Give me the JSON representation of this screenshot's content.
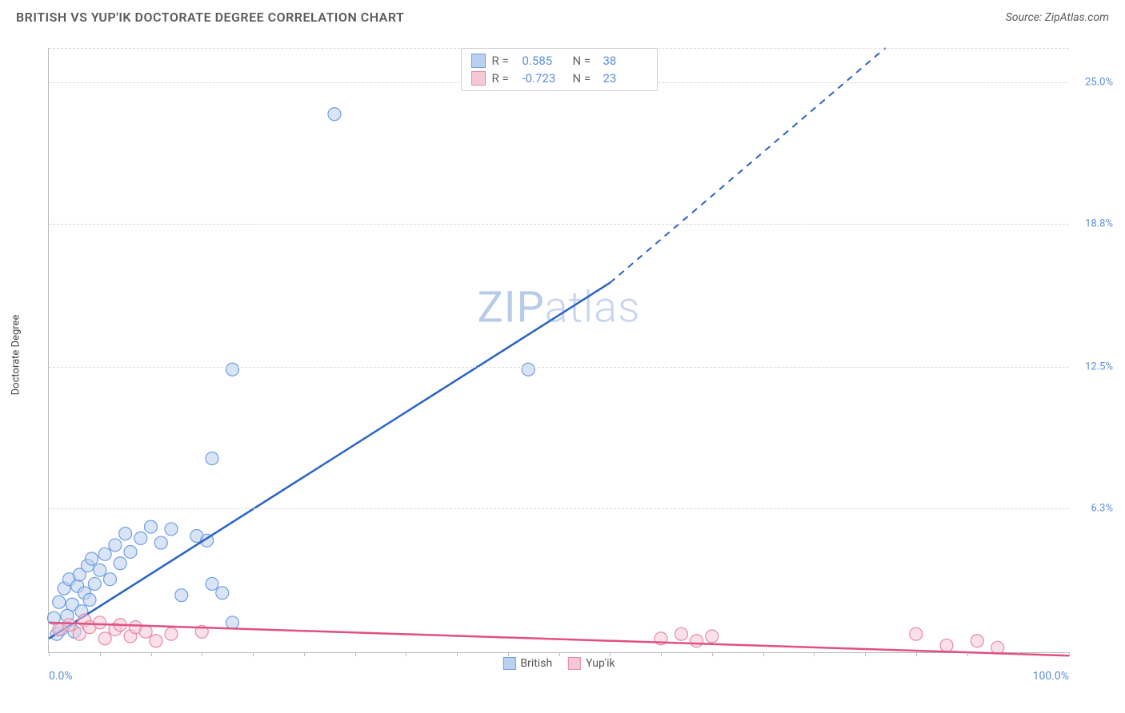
{
  "title": "BRITISH VS YUP'IK DOCTORATE DEGREE CORRELATION CHART",
  "source": "Source: ZipAtlas.com",
  "ylabel": "Doctorate Degree",
  "watermark_zip": "ZIP",
  "watermark_atlas": "atlas",
  "chart": {
    "type": "scatter",
    "xlim": [
      0,
      100
    ],
    "ylim": [
      0,
      26.5
    ],
    "xticks": [
      {
        "pos": 0,
        "label": "0.0%"
      },
      {
        "pos": 100,
        "label": "100.0%"
      }
    ],
    "xtick_minor_step": 5,
    "yticks": [
      {
        "pos": 6.3,
        "label": "6.3%"
      },
      {
        "pos": 12.5,
        "label": "12.5%"
      },
      {
        "pos": 18.8,
        "label": "18.8%"
      },
      {
        "pos": 25.0,
        "label": "25.0%"
      }
    ],
    "grid_color": "#d9d9d9",
    "axis_color": "#bbbbbb",
    "background_color": "#ffffff",
    "marker_radius": 8,
    "marker_opacity": 0.55,
    "line_width": 2.5,
    "series": [
      {
        "name": "British",
        "fill": "#b9d0f0",
        "stroke": "#6f9fe0",
        "line_color": "#2a63c4",
        "R": "0.585",
        "N": "38",
        "trend": {
          "x1": 0,
          "y1": 0.6,
          "x2": 55,
          "y2": 16.2,
          "dash_from_x": 55,
          "x3": 82,
          "y3": 26.5
        },
        "points": [
          [
            0.5,
            1.5
          ],
          [
            0.8,
            0.8
          ],
          [
            1.0,
            2.2
          ],
          [
            1.2,
            1.0
          ],
          [
            1.5,
            2.8
          ],
          [
            1.8,
            1.6
          ],
          [
            2.0,
            3.2
          ],
          [
            2.3,
            2.1
          ],
          [
            2.5,
            0.9
          ],
          [
            2.8,
            2.9
          ],
          [
            3.0,
            3.4
          ],
          [
            3.2,
            1.8
          ],
          [
            3.5,
            2.6
          ],
          [
            3.8,
            3.8
          ],
          [
            4.0,
            2.3
          ],
          [
            4.2,
            4.1
          ],
          [
            4.5,
            3.0
          ],
          [
            5.0,
            3.6
          ],
          [
            5.5,
            4.3
          ],
          [
            6.0,
            3.2
          ],
          [
            6.5,
            4.7
          ],
          [
            7.0,
            3.9
          ],
          [
            7.5,
            5.2
          ],
          [
            8.0,
            4.4
          ],
          [
            9.0,
            5.0
          ],
          [
            10.0,
            5.5
          ],
          [
            11.0,
            4.8
          ],
          [
            12.0,
            5.4
          ],
          [
            13.0,
            2.5
          ],
          [
            14.5,
            5.1
          ],
          [
            15.5,
            4.9
          ],
          [
            16.0,
            3.0
          ],
          [
            17.0,
            2.6
          ],
          [
            18.0,
            1.3
          ],
          [
            16.0,
            8.5
          ],
          [
            18.0,
            12.4
          ],
          [
            28.0,
            23.6
          ],
          [
            47.0,
            12.4
          ]
        ]
      },
      {
        "name": "Yup'ik",
        "fill": "#f6c7d6",
        "stroke": "#e88aa8",
        "line_color": "#e05080",
        "R": "-0.723",
        "N": "23",
        "trend": {
          "x1": 0,
          "y1": 1.3,
          "x2": 100,
          "y2": -0.15
        },
        "points": [
          [
            1.0,
            1.0
          ],
          [
            2.0,
            1.2
          ],
          [
            3.0,
            0.8
          ],
          [
            3.5,
            1.4
          ],
          [
            4.0,
            1.1
          ],
          [
            5.0,
            1.3
          ],
          [
            5.5,
            0.6
          ],
          [
            6.5,
            1.0
          ],
          [
            7.0,
            1.2
          ],
          [
            8.0,
            0.7
          ],
          [
            8.5,
            1.1
          ],
          [
            9.5,
            0.9
          ],
          [
            10.5,
            0.5
          ],
          [
            12.0,
            0.8
          ],
          [
            15.0,
            0.9
          ],
          [
            60.0,
            0.6
          ],
          [
            62.0,
            0.8
          ],
          [
            63.5,
            0.5
          ],
          [
            65.0,
            0.7
          ],
          [
            85.0,
            0.8
          ],
          [
            88.0,
            0.3
          ],
          [
            91.0,
            0.5
          ],
          [
            93.0,
            0.2
          ]
        ]
      }
    ],
    "legend_top": {
      "r_label": "R =",
      "n_label": "N ="
    },
    "legend_bottom": [
      "British",
      "Yup'ik"
    ]
  }
}
